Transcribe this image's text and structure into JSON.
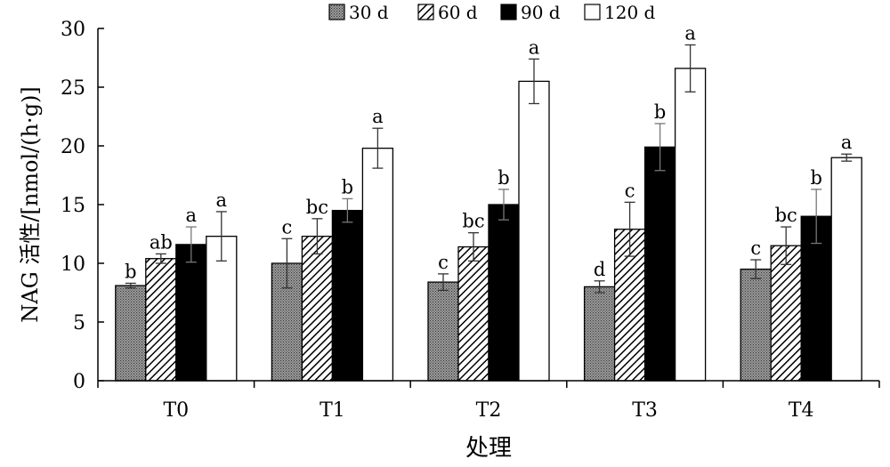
{
  "chart_data": {
    "type": "bar",
    "title": "",
    "xlabel": "处理",
    "ylabel": "NAG 活性/[nmol/(h·g)]",
    "ylim": [
      0,
      30
    ],
    "yticks": [
      "0",
      "5",
      "10",
      "15",
      "20",
      "25",
      "30"
    ],
    "ytick_values": [
      0,
      5,
      10,
      15,
      20,
      25,
      30
    ],
    "categories": [
      "T0",
      "T1",
      "T2",
      "T3",
      "T4"
    ],
    "legend_position": "top",
    "grid": false,
    "series": [
      {
        "name": "30 d",
        "pattern": "dense-gray",
        "values": [
          8.1,
          10.0,
          8.4,
          8.0,
          9.5
        ],
        "errors": [
          0.2,
          2.1,
          0.7,
          0.5,
          0.8
        ],
        "labels": [
          "b",
          "c",
          "c",
          "d",
          "c"
        ]
      },
      {
        "name": "60 d",
        "pattern": "diagonal-hatch",
        "values": [
          10.4,
          12.3,
          11.4,
          12.9,
          11.5
        ],
        "errors": [
          0.4,
          1.5,
          1.2,
          2.3,
          1.6
        ],
        "labels": [
          "ab",
          "bc",
          "bc",
          "c",
          "bc"
        ]
      },
      {
        "name": "90 d",
        "pattern": "solid-black",
        "values": [
          11.6,
          14.5,
          15.0,
          19.9,
          14.0
        ],
        "errors": [
          1.5,
          1.0,
          1.3,
          2.0,
          2.3
        ],
        "labels": [
          "a",
          "b",
          "b",
          "b",
          "b"
        ]
      },
      {
        "name": "120 d",
        "pattern": "white",
        "values": [
          12.3,
          19.8,
          25.5,
          26.6,
          19.0
        ],
        "errors": [
          2.1,
          1.7,
          1.9,
          2.0,
          0.3
        ],
        "labels": [
          "a",
          "a",
          "a",
          "a",
          "a"
        ]
      }
    ]
  }
}
